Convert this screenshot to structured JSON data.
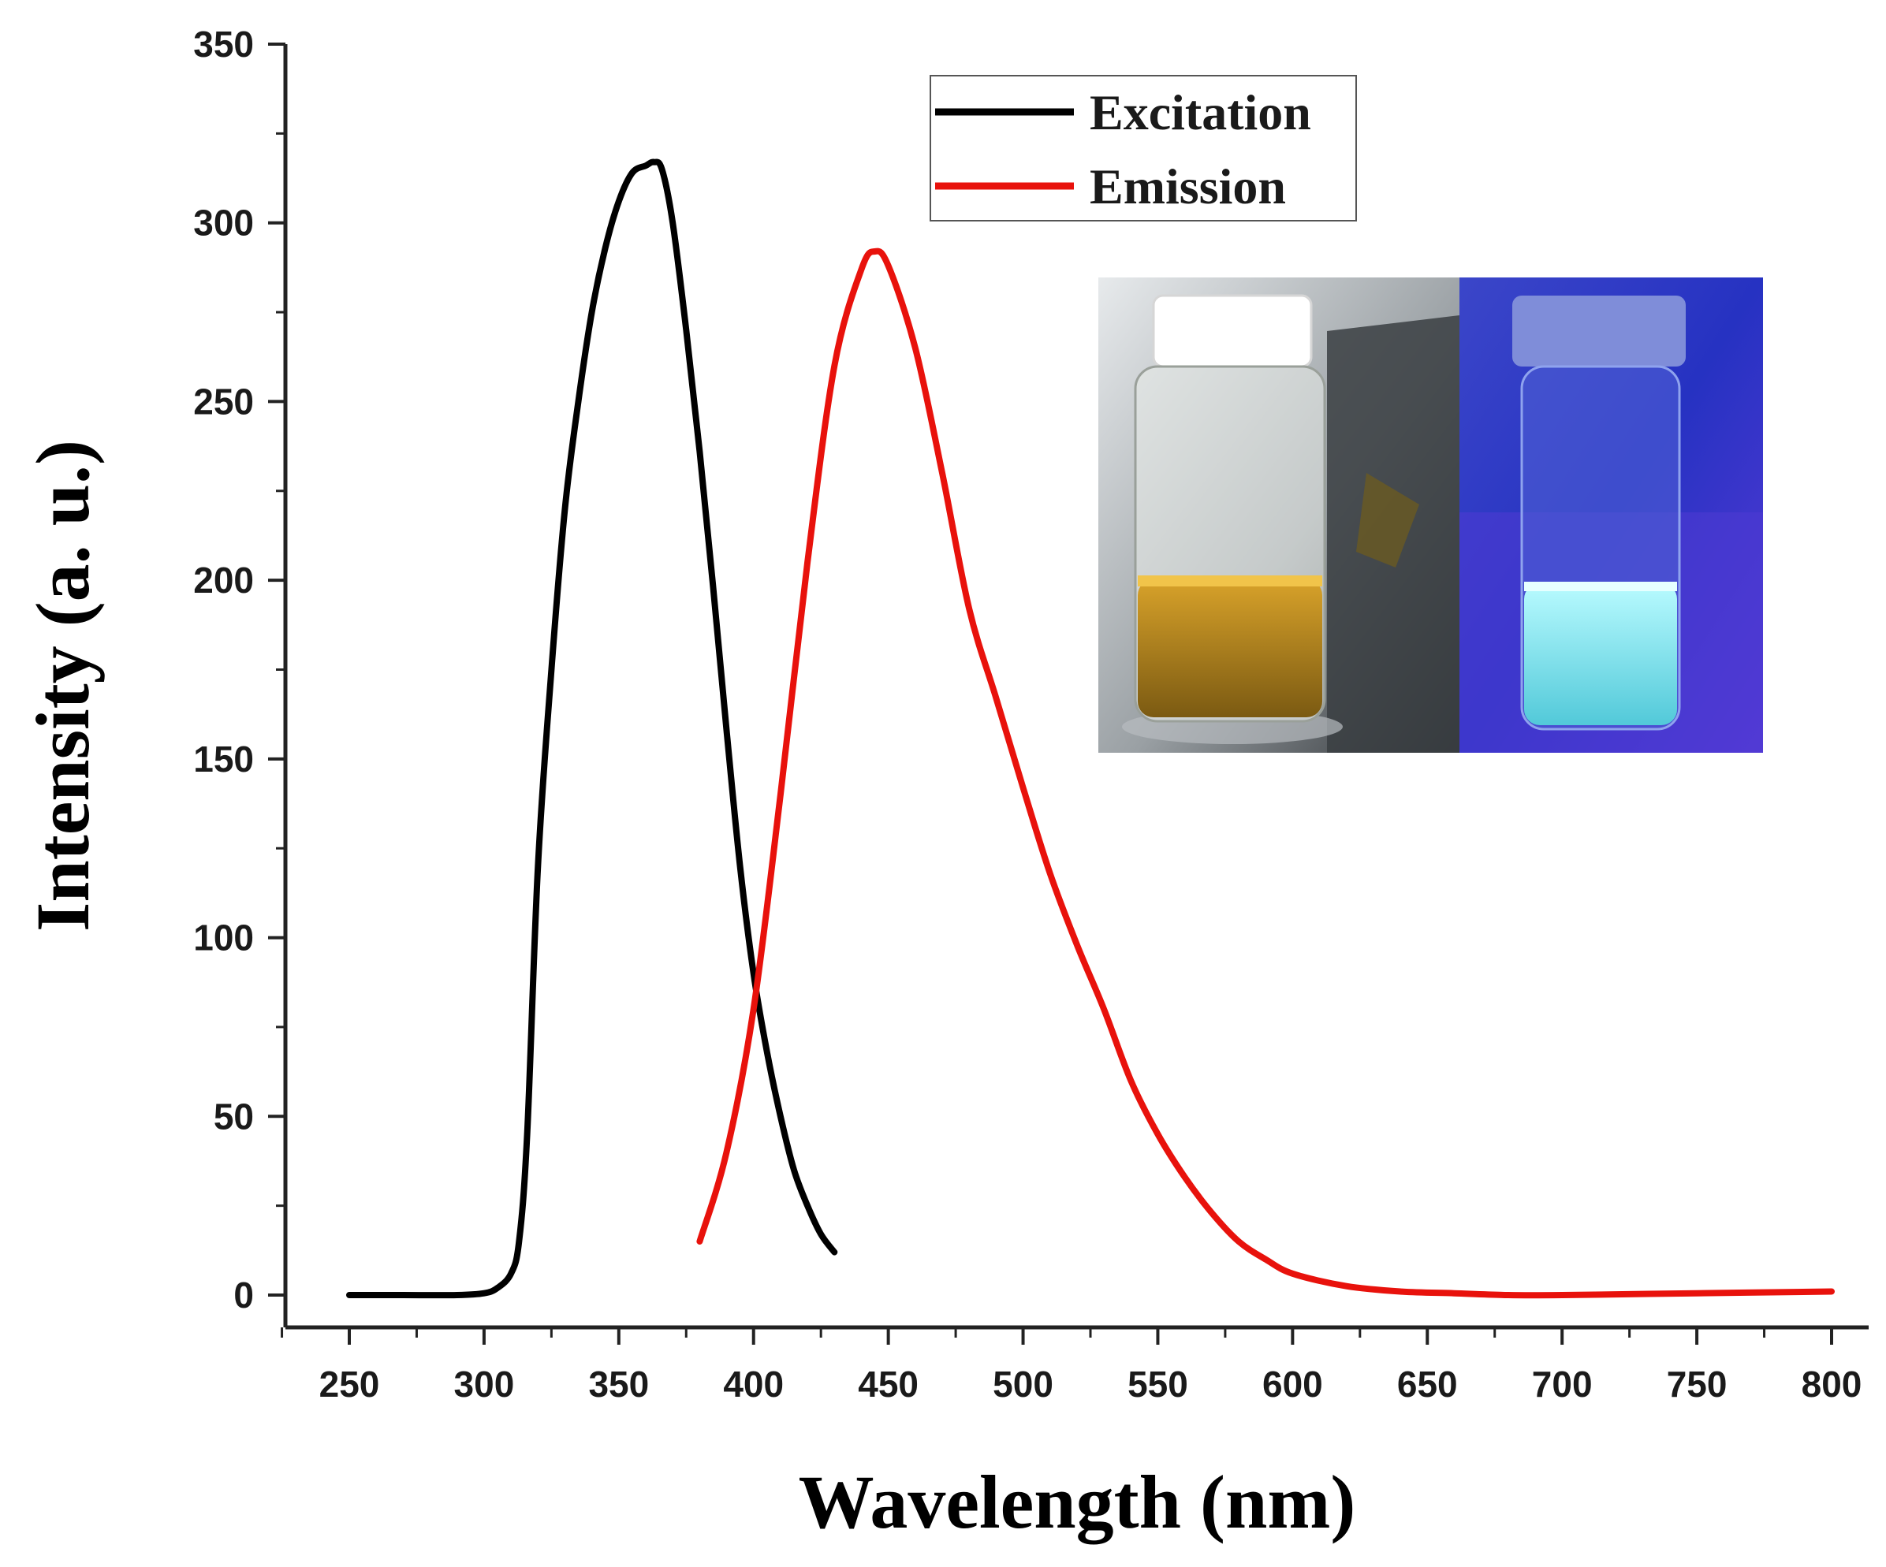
{
  "chart_data": {
    "type": "line",
    "title": "",
    "xlabel": "Wavelength (nm)",
    "ylabel": "Intensity (a. u.)",
    "xlim": [
      225,
      805
    ],
    "ylim": [
      -10,
      350
    ],
    "xticks": [
      250,
      300,
      350,
      400,
      450,
      500,
      550,
      600,
      650,
      700,
      750,
      800
    ],
    "yticks": [
      0,
      50,
      100,
      150,
      200,
      250,
      300,
      350
    ],
    "legend_position": "top-right",
    "series": [
      {
        "name": "Excitation",
        "color": "#000000",
        "x": [
          250,
          270,
          290,
          300,
          305,
          310,
          313,
          316,
          320,
          325,
          330,
          335,
          340,
          345,
          350,
          355,
          360,
          363,
          366,
          370,
          375,
          380,
          385,
          390,
          395,
          400,
          405,
          410,
          415,
          420,
          425,
          430
        ],
        "y": [
          0,
          0,
          0,
          0.5,
          2,
          6,
          15,
          45,
          120,
          175,
          220,
          250,
          275,
          293,
          306,
          314,
          316,
          317,
          315,
          300,
          270,
          236,
          198,
          158,
          120,
          90,
          68,
          50,
          35,
          25,
          17,
          12
        ]
      },
      {
        "name": "Emission",
        "color": "#e8120c",
        "x": [
          380,
          390,
          400,
          410,
          420,
          430,
          440,
          445,
          450,
          460,
          470,
          480,
          490,
          500,
          510,
          520,
          530,
          540,
          550,
          560,
          570,
          580,
          590,
          600,
          620,
          640,
          660,
          680,
          700,
          750,
          800
        ],
        "y": [
          15,
          40,
          80,
          140,
          205,
          260,
          287,
          292,
          288,
          265,
          230,
          192,
          167,
          142,
          118,
          98,
          80,
          60,
          45,
          33,
          23,
          15,
          10,
          6,
          2.5,
          1,
          0.5,
          0,
          0,
          0.5,
          1
        ]
      }
    ],
    "inset": {
      "description_panels": [
        "daylight",
        "uv"
      ]
    }
  }
}
